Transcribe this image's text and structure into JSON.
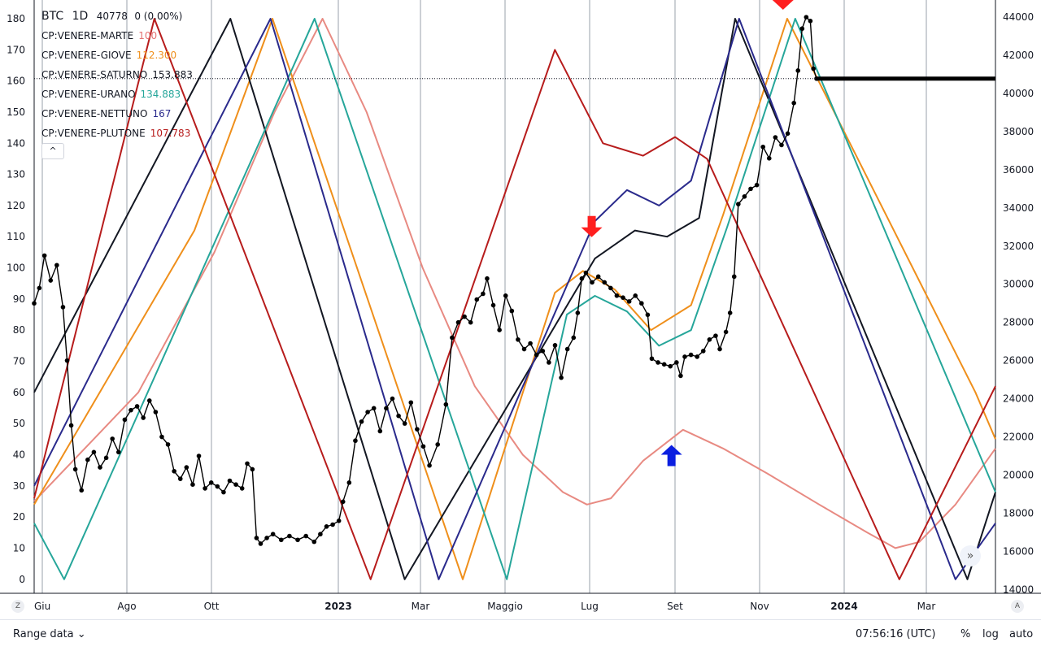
{
  "header": {
    "symbol": "BTC",
    "interval": "1D",
    "price": "40778",
    "change": "0 (0.00%)"
  },
  "legend": [
    {
      "name": "CP:VENERE-MARTE",
      "value": "100",
      "color": "#e57373"
    },
    {
      "name": "CP:VENERE-GIOVE",
      "value": "112.300",
      "color": "#ef8f1b"
    },
    {
      "name": "CP:VENERE-SATURNO",
      "value": "153.883",
      "color": "#131722"
    },
    {
      "name": "CP:VENERE-URANO",
      "value": "134.883",
      "color": "#26a69a"
    },
    {
      "name": "CP:VENERE-NETTUNO",
      "value": "167",
      "color": "#2a2a8c"
    },
    {
      "name": "CP:VENERE-PLUTONE",
      "value": "107.783",
      "color": "#b71c1c"
    }
  ],
  "collapse_glyph": "^",
  "bottom_bar": {
    "range_label": "Range data",
    "range_chevron": "⌄",
    "clock": "07:56:16 (UTC)",
    "percent": "%",
    "log": "log",
    "auto": "auto"
  },
  "corner": {
    "left": "Z",
    "right": "A"
  },
  "scroll_glyph": "»",
  "chart_data": {
    "type": "line",
    "x_ticks": [
      "Giu",
      "Ago",
      "Ott",
      "2023",
      "Mar",
      "Maggio",
      "Lug",
      "Set",
      "Nov",
      "2024",
      "Mar"
    ],
    "x_ticks_bold": [
      "2023",
      "2024"
    ],
    "left_axis": {
      "ticks": [
        0,
        10,
        20,
        30,
        40,
        50,
        60,
        70,
        80,
        90,
        100,
        110,
        120,
        130,
        140,
        150,
        160,
        170,
        180
      ],
      "range": [
        -4.5,
        186
      ]
    },
    "right_axis": {
      "ticks": [
        14000,
        16000,
        18000,
        20000,
        22000,
        24000,
        26000,
        28000,
        30000,
        32000,
        34000,
        36000,
        38000,
        40000,
        42000,
        44000
      ],
      "range": [
        13800,
        44900
      ]
    },
    "price_line": 40778,
    "grid": "vertical",
    "cycles": [
      {
        "series": "CP:VENERE-MARTE",
        "color": "#e88a82",
        "points": [
          [
            0,
            25
          ],
          [
            2.6,
            60
          ],
          [
            4.5,
            105
          ],
          [
            6.0,
            150
          ],
          [
            7.2,
            180
          ],
          [
            8.3,
            150
          ],
          [
            9.7,
            100
          ],
          [
            11.0,
            62
          ],
          [
            12.2,
            40
          ],
          [
            13.2,
            28
          ],
          [
            13.8,
            24
          ],
          [
            14.4,
            26
          ],
          [
            15.2,
            38
          ],
          [
            16.2,
            48
          ],
          [
            17.2,
            42
          ],
          [
            18.3,
            34
          ],
          [
            19.6,
            24
          ],
          [
            20.8,
            15
          ],
          [
            21.5,
            10
          ],
          [
            22.1,
            12
          ],
          [
            23.0,
            24
          ],
          [
            24.0,
            42
          ]
        ]
      },
      {
        "series": "CP:VENERE-GIOVE",
        "color": "#ef8f1b",
        "points": [
          [
            0,
            24
          ],
          [
            4.0,
            112
          ],
          [
            5.95,
            180
          ],
          [
            10.7,
            0
          ],
          [
            13.0,
            92
          ],
          [
            13.7,
            99
          ],
          [
            14.5,
            93
          ],
          [
            15.4,
            80
          ],
          [
            16.4,
            88
          ],
          [
            17.2,
            117
          ],
          [
            18.8,
            180
          ],
          [
            23.5,
            60
          ],
          [
            24,
            45
          ]
        ]
      },
      {
        "series": "CP:VENERE-SATURNO",
        "color": "#131722",
        "points": [
          [
            0,
            60
          ],
          [
            4.9,
            180
          ],
          [
            9.25,
            0
          ],
          [
            14.0,
            103
          ],
          [
            15.0,
            112
          ],
          [
            15.8,
            110
          ],
          [
            16.6,
            116
          ],
          [
            17.5,
            180
          ],
          [
            23.3,
            0
          ],
          [
            24,
            28
          ]
        ]
      },
      {
        "series": "CP:VENERE-URANO",
        "color": "#26a69a",
        "points": [
          [
            0,
            18
          ],
          [
            0.75,
            0
          ],
          [
            7.0,
            180
          ],
          [
            11.8,
            0
          ],
          [
            13.3,
            85
          ],
          [
            14.0,
            91
          ],
          [
            14.8,
            86
          ],
          [
            15.6,
            75
          ],
          [
            16.4,
            80
          ],
          [
            17.3,
            113
          ],
          [
            19.0,
            180
          ],
          [
            24,
            28
          ]
        ]
      },
      {
        "series": "CP:VENERE-NETTUNO",
        "color": "#2a2a8c",
        "points": [
          [
            0,
            30
          ],
          [
            5.9,
            180
          ],
          [
            10.1,
            0
          ],
          [
            14.0,
            115
          ],
          [
            14.8,
            125
          ],
          [
            15.6,
            120
          ],
          [
            16.4,
            128
          ],
          [
            17.6,
            180
          ],
          [
            23.0,
            0
          ],
          [
            24,
            18
          ]
        ]
      },
      {
        "series": "CP:VENERE-PLUTONE",
        "color": "#b71c1c",
        "points": [
          [
            0,
            26
          ],
          [
            3.0,
            180
          ],
          [
            8.4,
            0
          ],
          [
            13.0,
            170
          ],
          [
            14.2,
            140
          ],
          [
            15.2,
            136
          ],
          [
            16.0,
            142
          ],
          [
            16.8,
            135
          ],
          [
            21.6,
            0
          ],
          [
            24,
            62
          ]
        ]
      }
    ],
    "btc_daily": [
      [
        0.0,
        29000
      ],
      [
        0.25,
        29800
      ],
      [
        0.5,
        31500
      ],
      [
        0.8,
        30200
      ],
      [
        1.1,
        31000
      ],
      [
        1.4,
        28800
      ],
      [
        1.6,
        26000
      ],
      [
        1.8,
        22600
      ],
      [
        2.0,
        20300
      ],
      [
        2.3,
        19200
      ],
      [
        2.6,
        20800
      ],
      [
        2.9,
        21200
      ],
      [
        3.2,
        20400
      ],
      [
        3.5,
        20900
      ],
      [
        3.8,
        21900
      ],
      [
        4.1,
        21200
      ],
      [
        4.4,
        22900
      ],
      [
        4.7,
        23400
      ],
      [
        5.0,
        23600
      ],
      [
        5.3,
        23000
      ],
      [
        5.6,
        23900
      ],
      [
        5.9,
        23300
      ],
      [
        6.2,
        22000
      ],
      [
        6.5,
        21600
      ],
      [
        6.8,
        20200
      ],
      [
        7.1,
        19800
      ],
      [
        7.4,
        20400
      ],
      [
        7.7,
        19500
      ],
      [
        8.0,
        21000
      ],
      [
        8.3,
        19300
      ],
      [
        8.6,
        19600
      ],
      [
        8.9,
        19400
      ],
      [
        9.2,
        19100
      ],
      [
        9.5,
        19700
      ],
      [
        9.8,
        19500
      ],
      [
        10.1,
        19300
      ],
      [
        10.35,
        20600
      ],
      [
        10.6,
        20300
      ],
      [
        10.8,
        16700
      ],
      [
        11.0,
        16400
      ],
      [
        11.3,
        16700
      ],
      [
        11.6,
        16900
      ],
      [
        12.0,
        16600
      ],
      [
        12.4,
        16800
      ],
      [
        12.8,
        16600
      ],
      [
        13.2,
        16800
      ],
      [
        13.6,
        16500
      ],
      [
        13.9,
        16900
      ],
      [
        14.2,
        17300
      ],
      [
        14.5,
        17400
      ],
      [
        14.8,
        17600
      ],
      [
        15.0,
        18600
      ],
      [
        15.3,
        19600
      ],
      [
        15.6,
        21800
      ],
      [
        15.9,
        22800
      ],
      [
        16.2,
        23300
      ],
      [
        16.5,
        23500
      ],
      [
        16.8,
        22300
      ],
      [
        17.1,
        23500
      ],
      [
        17.4,
        24000
      ],
      [
        17.7,
        23100
      ],
      [
        18.0,
        22700
      ],
      [
        18.3,
        23800
      ],
      [
        18.6,
        22400
      ],
      [
        18.9,
        21500
      ],
      [
        19.2,
        20500
      ],
      [
        19.6,
        21600
      ],
      [
        20.0,
        23700
      ],
      [
        20.3,
        27200
      ],
      [
        20.6,
        28000
      ],
      [
        20.9,
        28300
      ],
      [
        21.2,
        28000
      ],
      [
        21.5,
        29200
      ],
      [
        21.8,
        29500
      ],
      [
        22.0,
        30300
      ],
      [
        22.3,
        28900
      ],
      [
        22.6,
        27600
      ],
      [
        22.9,
        29400
      ],
      [
        23.2,
        28600
      ],
      [
        23.5,
        27100
      ],
      [
        23.8,
        26600
      ],
      [
        24.1,
        26900
      ],
      [
        24.4,
        26300
      ],
      [
        24.7,
        26500
      ],
      [
        25.0,
        25900
      ],
      [
        25.3,
        26800
      ],
      [
        25.6,
        25100
      ],
      [
        25.9,
        26600
      ],
      [
        26.2,
        27200
      ],
      [
        26.4,
        28500
      ],
      [
        26.6,
        30300
      ],
      [
        26.8,
        30600
      ],
      [
        27.1,
        30100
      ],
      [
        27.4,
        30400
      ],
      [
        27.7,
        30100
      ],
      [
        28.0,
        29800
      ],
      [
        28.3,
        29400
      ],
      [
        28.6,
        29300
      ],
      [
        28.9,
        29100
      ],
      [
        29.2,
        29400
      ],
      [
        29.5,
        29000
      ],
      [
        29.8,
        28400
      ],
      [
        30.0,
        26100
      ],
      [
        30.3,
        25900
      ],
      [
        30.6,
        25800
      ],
      [
        30.9,
        25700
      ],
      [
        31.2,
        25900
      ],
      [
        31.4,
        25200
      ],
      [
        31.6,
        26200
      ],
      [
        31.9,
        26300
      ],
      [
        32.2,
        26200
      ],
      [
        32.5,
        26500
      ],
      [
        32.8,
        27100
      ],
      [
        33.1,
        27300
      ],
      [
        33.3,
        26600
      ],
      [
        33.6,
        27500
      ],
      [
        33.8,
        28500
      ],
      [
        34.0,
        30400
      ],
      [
        34.2,
        34200
      ],
      [
        34.5,
        34600
      ],
      [
        34.8,
        35000
      ],
      [
        35.1,
        35200
      ],
      [
        35.4,
        37200
      ],
      [
        35.7,
        36600
      ],
      [
        36.0,
        37700
      ],
      [
        36.3,
        37300
      ],
      [
        36.6,
        37900
      ],
      [
        36.9,
        39500
      ],
      [
        37.1,
        41200
      ],
      [
        37.3,
        43400
      ],
      [
        37.5,
        44000
      ],
      [
        37.7,
        43800
      ],
      [
        37.85,
        41300
      ],
      [
        38.0,
        40778
      ]
    ],
    "annotations": [
      {
        "type": "arrow-down",
        "color": "#ff1f1f",
        "x_pct": 77.9,
        "y_val": 186
      },
      {
        "type": "arrow-down",
        "color": "#ff1f1f",
        "x_pct": 58.0,
        "y_val": 113
      },
      {
        "type": "arrow-up",
        "color": "#0b1fe0",
        "x_pct": 66.3,
        "y_val": 40
      }
    ]
  }
}
